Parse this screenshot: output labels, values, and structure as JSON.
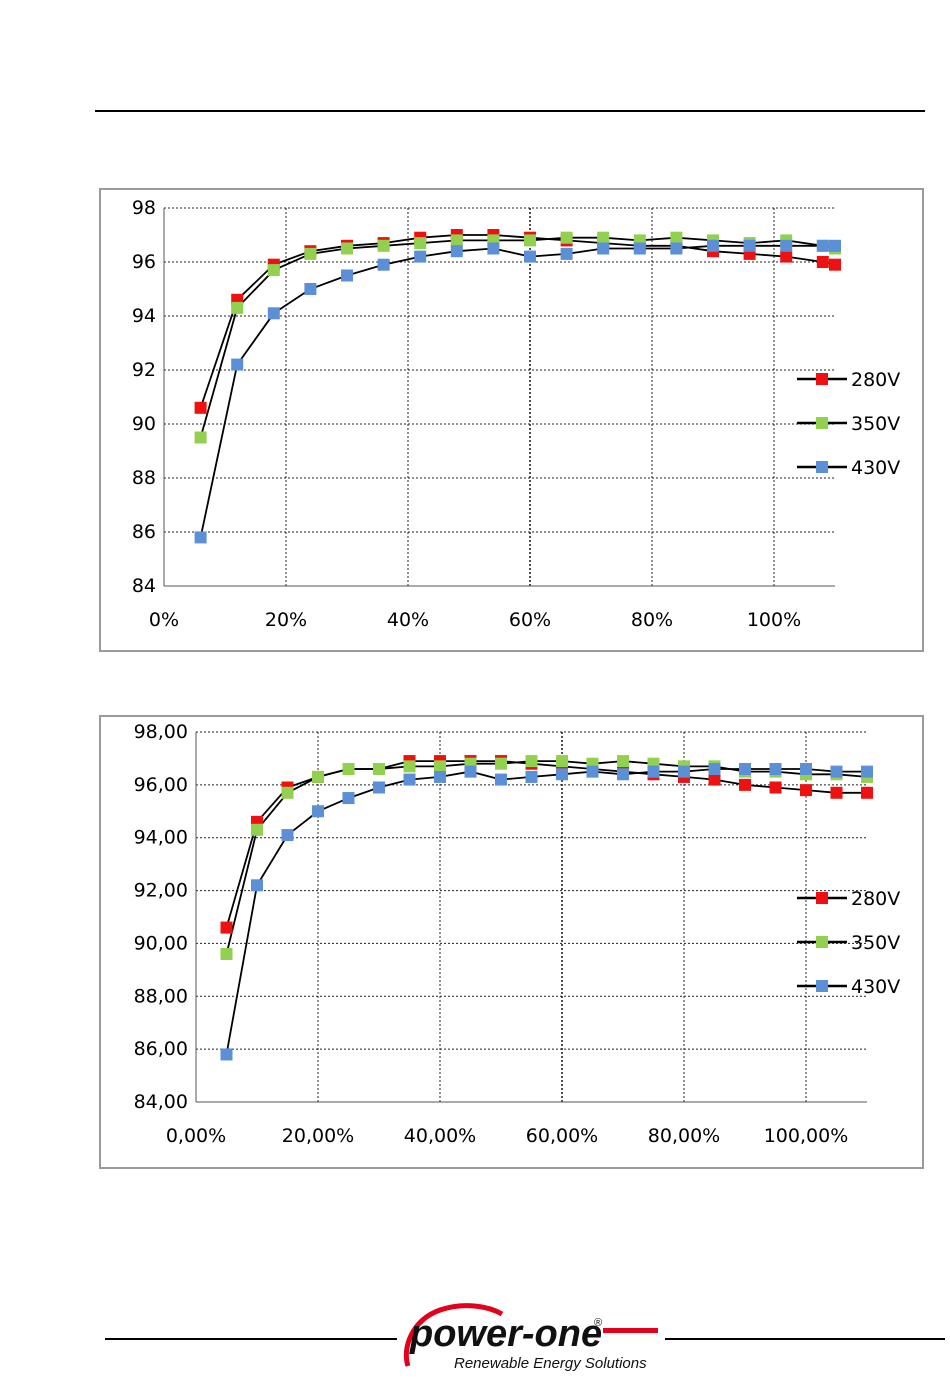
{
  "chart_data": [
    {
      "type": "line",
      "x_tick_labels": [
        "0%",
        "20%",
        "40%",
        "60%",
        "80%",
        "100%"
      ],
      "y_tick_labels": [
        "84",
        "86",
        "88",
        "90",
        "92",
        "94",
        "96",
        "98"
      ],
      "xlim": [
        0,
        110
      ],
      "ylim": [
        84,
        98
      ],
      "grid": "vertical dashed, horizontal dashed",
      "legend_position": "right",
      "series": [
        {
          "name": "280V",
          "color": "#ee1111",
          "x": [
            6,
            12,
            18,
            24,
            30,
            36,
            42,
            48,
            54,
            60,
            66,
            72,
            78,
            84,
            90,
            96,
            102,
            108,
            110
          ],
          "y": [
            90.6,
            94.6,
            95.9,
            96.4,
            96.6,
            96.7,
            96.9,
            97.0,
            97.0,
            96.9,
            96.8,
            96.7,
            96.6,
            96.6,
            96.4,
            96.3,
            96.2,
            96.0,
            95.9
          ]
        },
        {
          "name": "350V",
          "color": "#92d050",
          "x": [
            6,
            12,
            18,
            24,
            30,
            36,
            42,
            48,
            54,
            60,
            66,
            72,
            78,
            84,
            90,
            96,
            102,
            108,
            110
          ],
          "y": [
            89.5,
            94.3,
            95.7,
            96.3,
            96.5,
            96.6,
            96.7,
            96.8,
            96.8,
            96.8,
            96.9,
            96.9,
            96.8,
            96.9,
            96.8,
            96.7,
            96.8,
            96.6,
            96.5
          ]
        },
        {
          "name": "430V",
          "color": "#5b8fd6",
          "x": [
            6,
            12,
            18,
            24,
            30,
            36,
            42,
            48,
            54,
            60,
            66,
            72,
            78,
            84,
            90,
            96,
            102,
            108,
            110
          ],
          "y": [
            85.8,
            92.2,
            94.1,
            95.0,
            95.5,
            95.9,
            96.2,
            96.4,
            96.5,
            96.2,
            96.3,
            96.5,
            96.5,
            96.5,
            96.6,
            96.6,
            96.6,
            96.6,
            96.6
          ]
        }
      ]
    },
    {
      "type": "line",
      "x_tick_labels": [
        "0,00%",
        "20,00%",
        "40,00%",
        "60,00%",
        "80,00%",
        "100,00%"
      ],
      "y_tick_labels": [
        "84,00",
        "86,00",
        "88,00",
        "90,00",
        "92,00",
        "94,00",
        "96,00",
        "98,00"
      ],
      "xlim": [
        0,
        110
      ],
      "ylim": [
        84,
        98
      ],
      "grid": "vertical dashed, horizontal dashed",
      "legend_position": "right",
      "series": [
        {
          "name": "280V",
          "color": "#ee1111",
          "x": [
            5,
            10,
            15,
            20,
            25,
            30,
            35,
            40,
            45,
            50,
            55,
            60,
            65,
            70,
            75,
            80,
            85,
            90,
            95,
            100,
            105,
            110
          ],
          "y": [
            90.6,
            94.6,
            95.9,
            96.3,
            96.6,
            96.6,
            96.9,
            96.9,
            96.9,
            96.9,
            96.8,
            96.7,
            96.6,
            96.5,
            96.4,
            96.3,
            96.2,
            96.0,
            95.9,
            95.8,
            95.7,
            95.7
          ]
        },
        {
          "name": "350V",
          "color": "#92d050",
          "x": [
            5,
            10,
            15,
            20,
            25,
            30,
            35,
            40,
            45,
            50,
            55,
            60,
            65,
            70,
            75,
            80,
            85,
            90,
            95,
            100,
            105,
            110
          ],
          "y": [
            89.6,
            94.3,
            95.7,
            96.3,
            96.6,
            96.6,
            96.7,
            96.7,
            96.8,
            96.8,
            96.9,
            96.9,
            96.8,
            96.9,
            96.8,
            96.7,
            96.7,
            96.5,
            96.5,
            96.4,
            96.4,
            96.3
          ]
        },
        {
          "name": "430V",
          "color": "#5b8fd6",
          "x": [
            5,
            10,
            15,
            20,
            25,
            30,
            35,
            40,
            45,
            50,
            55,
            60,
            65,
            70,
            75,
            80,
            85,
            90,
            95,
            100,
            105,
            110
          ],
          "y": [
            85.8,
            92.2,
            94.1,
            95.0,
            95.5,
            95.9,
            96.2,
            96.3,
            96.5,
            96.2,
            96.3,
            96.4,
            96.5,
            96.4,
            96.5,
            96.5,
            96.6,
            96.6,
            96.6,
            96.6,
            96.5,
            96.5
          ]
        }
      ]
    }
  ],
  "logo": {
    "brand": "power-one",
    "tagline": "Renewable Energy Solutions",
    "registered": "®",
    "brand_color": "#e2001a"
  }
}
